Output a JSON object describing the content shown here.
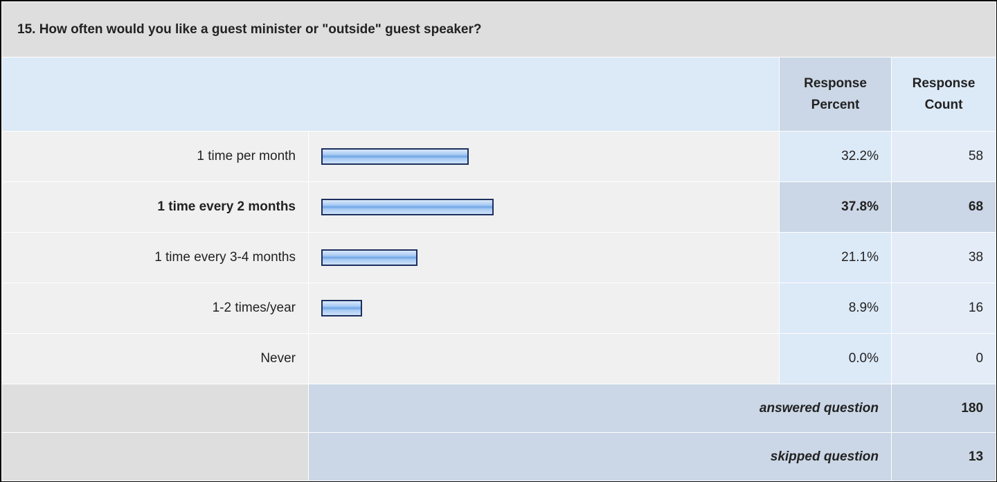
{
  "title": "15. How often would you like a guest minister or \"outside\" guest speaker?",
  "header": {
    "percent": "Response Percent",
    "count": "Response Count"
  },
  "rows": [
    {
      "label": "1 time per month",
      "percent": 32.2,
      "percent_label": "32.2%",
      "count": 58,
      "highlight": false
    },
    {
      "label": "1 time every 2 months",
      "percent": 37.8,
      "percent_label": "37.8%",
      "count": 68,
      "highlight": true
    },
    {
      "label": "1 time every 3-4 months",
      "percent": 21.1,
      "percent_label": "21.1%",
      "count": 38,
      "highlight": false
    },
    {
      "label": "1-2 times/year",
      "percent": 8.9,
      "percent_label": "8.9%",
      "count": 16,
      "highlight": false
    },
    {
      "label": "Never",
      "percent": 0,
      "percent_label": "0.0%",
      "count": 0,
      "highlight": false
    }
  ],
  "answered": {
    "label": "answered question",
    "count": 180
  },
  "skipped": {
    "label": "skipped question",
    "count": 13
  }
}
